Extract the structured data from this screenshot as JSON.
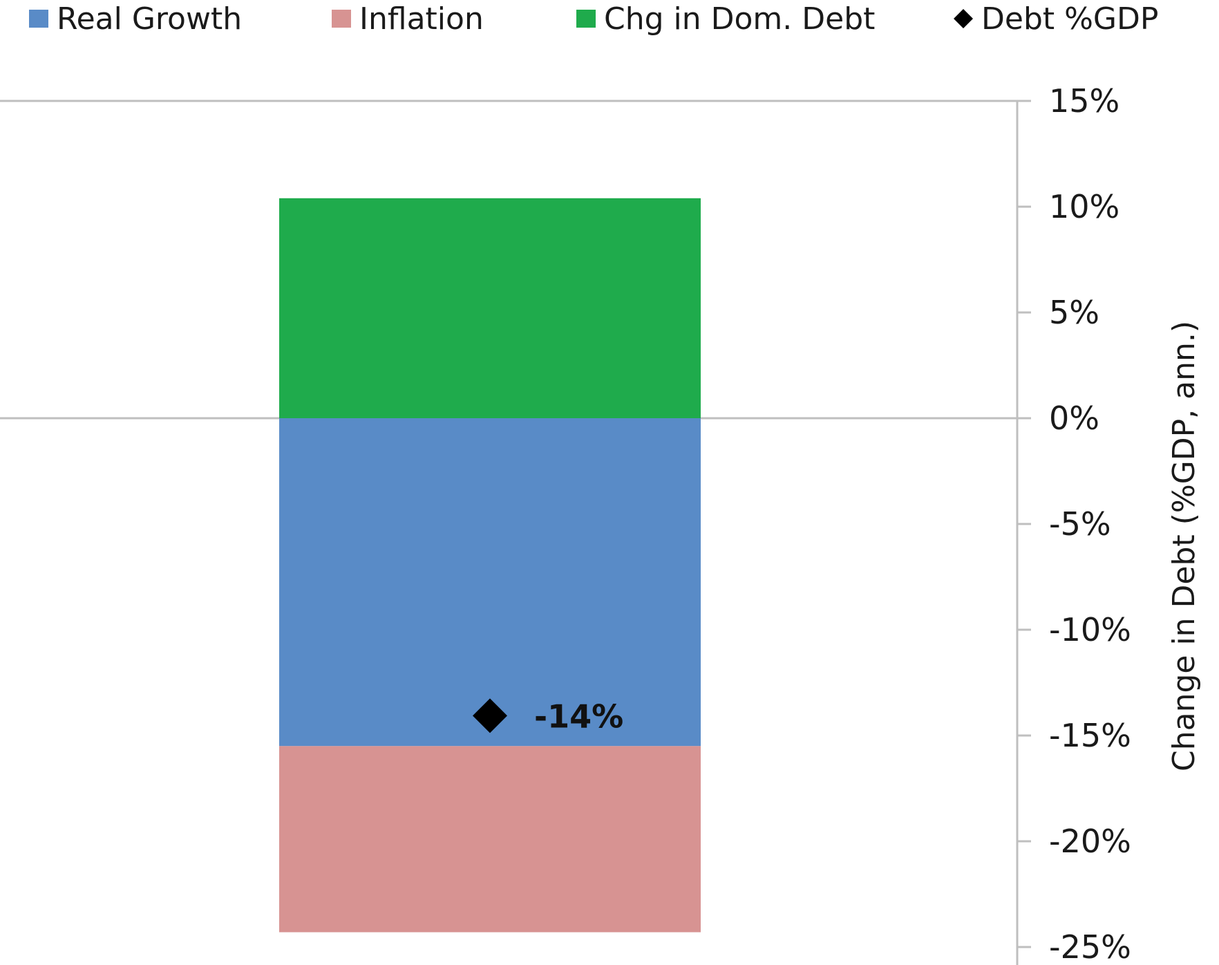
{
  "chart_data": {
    "type": "bar",
    "stacked": true,
    "categories": [
      ""
    ],
    "series": [
      {
        "name": "Real Growth",
        "values": [
          -15.5
        ],
        "color": "#598bc7"
      },
      {
        "name": "Inflation",
        "values": [
          -8.8
        ],
        "color": "#d79392"
      },
      {
        "name": "Chg in Dom. Debt",
        "values": [
          10.4
        ],
        "color": "#1fab4c"
      }
    ],
    "markers": [
      {
        "name": "Debt %GDP",
        "values": [
          -14
        ],
        "label": "-14%",
        "shape": "diamond",
        "color": "#000000"
      }
    ],
    "legend": {
      "position": "top",
      "entries": [
        "Real Growth",
        "Inflation",
        "Chg in Dom. Debt",
        "Debt %GDP"
      ]
    },
    "ylabel": "Change in Debt (%GDP, ann.)",
    "ylabel_position": "right",
    "ylim": [
      -25,
      15
    ],
    "yticks": [
      15,
      10,
      5,
      0,
      -5,
      -10,
      -15,
      -20,
      -25
    ],
    "ytick_labels": [
      "15%",
      "10%",
      "5%",
      "0%",
      "-5%",
      "-10%",
      "-15%",
      "-20%",
      "-25%"
    ],
    "grid": false
  }
}
